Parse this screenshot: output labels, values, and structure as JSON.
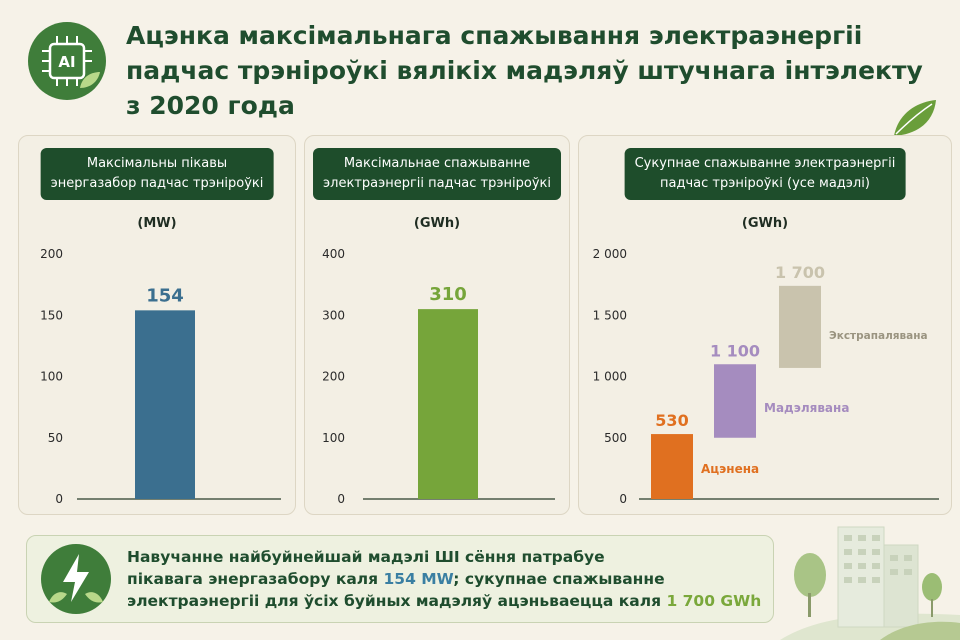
{
  "header": {
    "logo_text": "AI",
    "title_line1": "Ацэнка максімальнага спажывання электраэнергіі",
    "title_line2": "падчас трэніроўкі вялікіх мадэляў штучнага інтэлекту",
    "title_line3": "з 2020 года"
  },
  "colors": {
    "dark_green": "#1e4d2b",
    "blue_bar": "#3b6f8f",
    "green_bar": "#76a53a",
    "orange": "#e07020",
    "purple": "#a58cbf",
    "khaki": "#c9c3ad"
  },
  "icons": [
    "chip-icon",
    "leaf-icon",
    "lightning-icon",
    "buildings-icon"
  ],
  "chart_data": [
    {
      "type": "bar",
      "title_line1": "Максімальны пікавы",
      "title_line2": "энергазабор падчас трэніроўкі",
      "ylabel": "(MW)",
      "ylim": [
        0,
        200
      ],
      "yticks": [
        "0",
        "50",
        "100",
        "150",
        "200"
      ],
      "values": [
        154
      ],
      "value_labels": [
        "154"
      ],
      "bar_color": "#3b6f8f",
      "label_color": "#3b6f8f"
    },
    {
      "type": "bar",
      "title_line1": "Максімальнае спажыванне",
      "title_line2": "электраэнергіі падчас трэніроўкі",
      "ylabel": "(GWh)",
      "ylim": [
        0,
        400
      ],
      "yticks": [
        "0",
        "100",
        "200",
        "300",
        "400"
      ],
      "values": [
        310
      ],
      "value_labels": [
        "310"
      ],
      "bar_color": "#76a53a",
      "label_color": "#76a53a"
    },
    {
      "type": "bar",
      "title_line1": "Сукупнае спажыванне электраэнергіі",
      "title_line2": "падчас трэніроўкі (усе мадэлі)",
      "ylabel": "(GWh)",
      "ylim": [
        0,
        2000
      ],
      "yticks": [
        "0",
        "500",
        "1 000",
        "1 500",
        "2 000"
      ],
      "segments": [
        {
          "name": "Ацэнена",
          "start": 0,
          "end": 530,
          "value_label": "530",
          "color": "#e07020"
        },
        {
          "name": "Мадэлявана",
          "start": 500,
          "end": 1100,
          "value_label": "1 100",
          "color": "#a58cbf"
        },
        {
          "name": "Экстрапалявана",
          "start": 1070,
          "end": 1740,
          "value_label": "1 700",
          "color": "#c9c3ad"
        }
      ]
    }
  ],
  "summary": {
    "line1": "Навучанне найбуйнейшай мадэлі ШІ сёння патрабуе",
    "line2_prefix": "пікавага энергазабору каля ",
    "line2_highlight": "154 MW",
    "line2_suffix": "; сукупнае спажыванне",
    "line3_prefix": "электраэнергіі для ўсіх буйных мадэляў ацэньваецца каля ",
    "line3_highlight": "1 700 GWh"
  }
}
